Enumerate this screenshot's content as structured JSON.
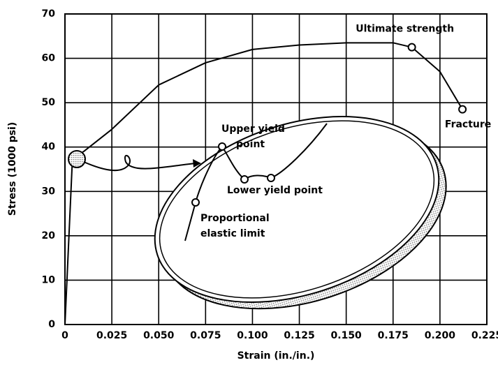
{
  "chart_data": {
    "type": "line",
    "x_label": "Strain (in./in.)",
    "y_label": "Stress (1000 psi)",
    "x": [
      0,
      0.004,
      0.01,
      0.025,
      0.05,
      0.075,
      0.1,
      0.125,
      0.15,
      0.175,
      0.185,
      0.2,
      0.212
    ],
    "series": [
      {
        "color": "#000000",
        "values": [
          0,
          37.5,
          39,
          44,
          54,
          59,
          62,
          63,
          63.5,
          63.5,
          62.5,
          57,
          48.5
        ]
      }
    ],
    "xlim": [
      0,
      0.225
    ],
    "ylim": [
      0,
      70
    ],
    "xticks": [
      0,
      0.025,
      {
        "value": 0.05,
        "label": "0.050"
      },
      0.075,
      {
        "value": 0.1,
        "label": "0.100"
      },
      0.125,
      {
        "value": 0.15,
        "label": "0.150"
      },
      0.175,
      {
        "value": 0.2,
        "label": "0.200"
      },
      0.225
    ],
    "yticks": [
      0,
      10,
      20,
      30,
      40,
      50,
      60,
      70
    ],
    "grid": true,
    "point_labels": [
      {
        "index": 10,
        "text": "Ultimate strength"
      },
      {
        "index": 12,
        "text": "Fracture"
      }
    ],
    "inset_labels": {
      "upper": [
        "Upper yield",
        "point"
      ],
      "lower": "Lower yield point",
      "proportional": [
        "Proportional",
        "elastic limit"
      ]
    }
  }
}
